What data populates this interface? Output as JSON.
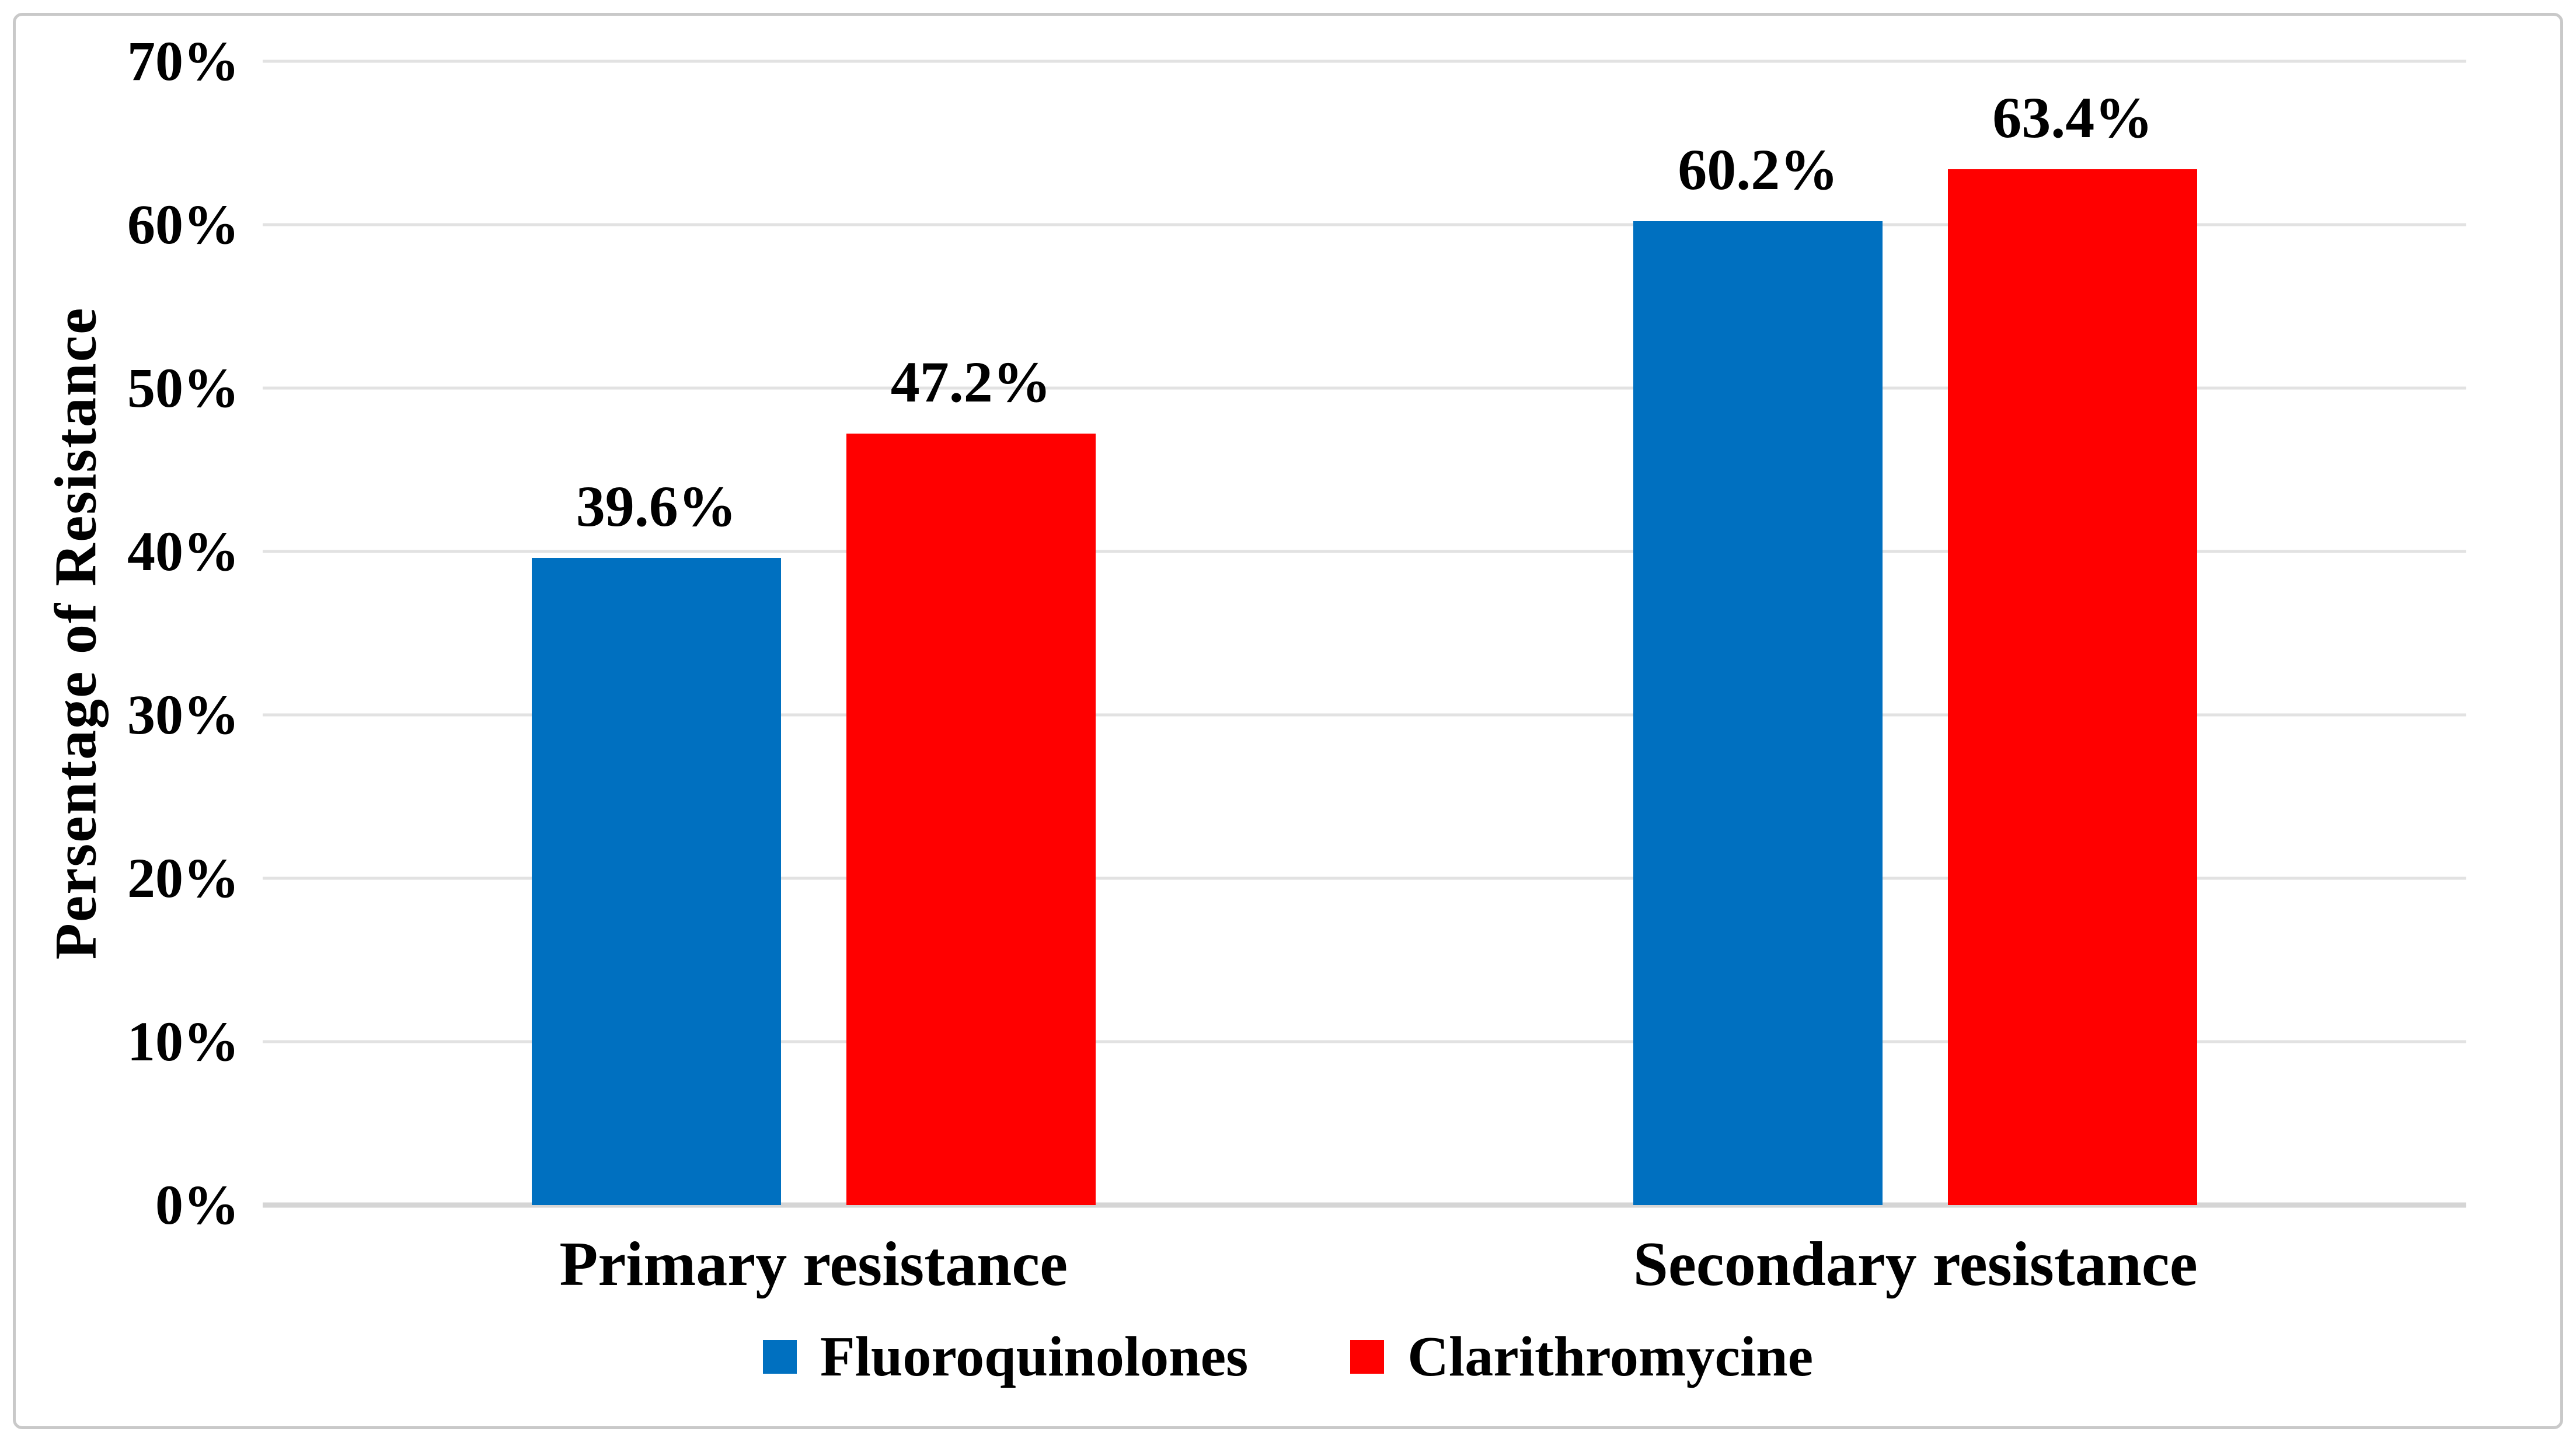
{
  "figure": {
    "background": "#FFFFFF",
    "border_color": "#C9C9C9"
  },
  "chart_data": {
    "type": "bar",
    "title": "",
    "ylabel": "Persentage of Resistance",
    "xlabel": "",
    "ylim": [
      0,
      70
    ],
    "ytick_step": 10,
    "yticks": [
      "0%",
      "10%",
      "20%",
      "30%",
      "40%",
      "50%",
      "60%",
      "70%"
    ],
    "categories": [
      "Primary resistance",
      "Secondary resistance"
    ],
    "series": [
      {
        "name": "Fluoroquinolones",
        "color": "#0070C0",
        "values": [
          39.6,
          60.2
        ],
        "labels": [
          "39.6%",
          "60.2%"
        ]
      },
      {
        "name": "Clarithromycine",
        "color": "#FF0000",
        "values": [
          47.2,
          63.4
        ],
        "labels": [
          "47.2%",
          "63.4%"
        ]
      }
    ],
    "grid": true,
    "gridline_color": "#E2E2E2",
    "axis_line_color": "#D5D5D5",
    "legend_position": "bottom"
  }
}
